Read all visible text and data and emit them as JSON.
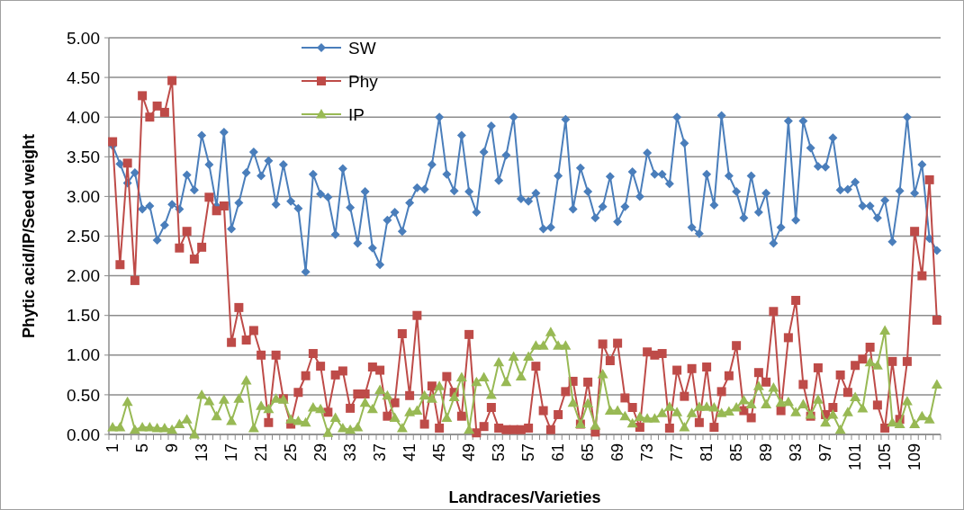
{
  "chart_data": {
    "type": "line",
    "xlabel": "Landraces/Varieties",
    "ylabel": "Phytic acid/IP/Seed weight",
    "categories": [
      "1",
      null,
      null,
      null,
      "5",
      null,
      null,
      null,
      "9",
      null,
      null,
      null,
      "13",
      null,
      null,
      null,
      "17",
      null,
      null,
      null,
      "21",
      null,
      null,
      null,
      "25",
      null,
      null,
      null,
      "29",
      null,
      null,
      null,
      "33",
      null,
      null,
      null,
      "37",
      null,
      null,
      null,
      "41",
      null,
      null,
      null,
      "45",
      null,
      null,
      null,
      "49",
      null,
      null,
      null,
      "53",
      null,
      null,
      null,
      "57",
      null,
      null,
      null,
      "61",
      null,
      null,
      null,
      "65",
      null,
      null,
      null,
      "69",
      null,
      null,
      null,
      "73",
      null,
      null,
      null,
      "77",
      null,
      null,
      null,
      "81",
      null,
      null,
      null,
      "85",
      null,
      null,
      null,
      "89",
      null,
      null,
      null,
      "93",
      null,
      null,
      null,
      "97",
      null,
      null,
      null,
      "101",
      null,
      null,
      null,
      "105",
      null,
      null,
      null,
      "109",
      null,
      null,
      null
    ],
    "series": [
      {
        "name": "SW",
        "color": "#4a7ebb",
        "marker": "diamond",
        "values": [
          3.64,
          3.41,
          3.17,
          3.3,
          2.84,
          2.88,
          2.45,
          2.64,
          2.9,
          2.84,
          3.27,
          3.08,
          3.77,
          3.4,
          2.88,
          3.81,
          2.59,
          2.92,
          3.3,
          3.56,
          3.26,
          3.45,
          2.9,
          3.4,
          2.94,
          2.85,
          2.05,
          3.28,
          3.03,
          2.99,
          2.52,
          3.35,
          2.86,
          2.41,
          3.06,
          2.35,
          2.14,
          2.7,
          2.8,
          2.56,
          2.92,
          3.11,
          3.09,
          3.4,
          4.0,
          3.28,
          3.07,
          3.77,
          3.06,
          2.8,
          3.56,
          3.89,
          3.2,
          3.52,
          4.0,
          2.97,
          2.94,
          3.04,
          2.59,
          2.61,
          3.26,
          3.97,
          2.84,
          3.36,
          3.06,
          2.73,
          2.87,
          3.25,
          2.68,
          2.87,
          3.31,
          3.0,
          3.55,
          3.28,
          3.28,
          3.16,
          4.0,
          3.67,
          2.61,
          2.53,
          3.28,
          2.89,
          4.02,
          3.26,
          3.06,
          2.73,
          3.26,
          2.8,
          3.04,
          2.41,
          2.61,
          3.95,
          2.7,
          3.95,
          3.61,
          3.38,
          3.37,
          3.74,
          3.08,
          3.09,
          3.18,
          2.88,
          2.88,
          2.73,
          2.95,
          2.43,
          3.07,
          4.0,
          3.04,
          3.4,
          2.47,
          2.32
        ]
      },
      {
        "name": "Phy",
        "color": "#be4b48",
        "marker": "square",
        "values": [
          3.69,
          2.14,
          3.42,
          1.94,
          4.27,
          4.0,
          4.14,
          4.06,
          4.46,
          2.35,
          2.56,
          2.21,
          2.36,
          2.99,
          2.82,
          2.88,
          1.16,
          1.6,
          1.19,
          1.31,
          1.0,
          0.15,
          1.0,
          0.45,
          0.13,
          0.53,
          0.74,
          1.02,
          0.86,
          0.28,
          0.75,
          0.8,
          0.33,
          0.51,
          0.51,
          0.85,
          0.81,
          0.23,
          0.4,
          1.27,
          0.49,
          1.5,
          0.13,
          0.61,
          0.08,
          0.73,
          0.53,
          0.23,
          1.26,
          0.02,
          0.1,
          0.34,
          0.08,
          0.06,
          0.06,
          0.06,
          0.08,
          0.86,
          0.3,
          0.06,
          0.25,
          0.54,
          0.67,
          0.13,
          0.66,
          0.03,
          1.14,
          0.93,
          1.15,
          0.46,
          0.34,
          0.09,
          1.04,
          1.0,
          1.02,
          0.08,
          0.81,
          0.48,
          0.83,
          0.15,
          0.85,
          0.09,
          0.54,
          0.74,
          1.12,
          0.3,
          0.21,
          0.78,
          0.66,
          1.55,
          0.3,
          1.22,
          1.69,
          0.63,
          0.23,
          0.84,
          0.25,
          0.34,
          0.75,
          0.53,
          0.87,
          0.95,
          1.1,
          0.37,
          0.08,
          0.92,
          0.19,
          0.92,
          2.56,
          2.0,
          3.21,
          1.44
        ]
      },
      {
        "name": "IP",
        "color": "#98b954",
        "marker": "triangle",
        "values": [
          0.09,
          0.09,
          0.41,
          0.06,
          0.09,
          0.09,
          0.08,
          0.08,
          0.06,
          0.13,
          0.19,
          0.0,
          0.5,
          0.42,
          0.23,
          0.44,
          0.17,
          0.45,
          0.68,
          0.08,
          0.36,
          0.32,
          0.45,
          0.44,
          0.19,
          0.17,
          0.15,
          0.34,
          0.32,
          0.02,
          0.21,
          0.08,
          0.06,
          0.09,
          0.4,
          0.32,
          0.56,
          0.49,
          0.21,
          0.08,
          0.28,
          0.3,
          0.49,
          0.45,
          0.61,
          0.21,
          0.47,
          0.72,
          0.06,
          0.66,
          0.72,
          0.5,
          0.91,
          0.66,
          0.98,
          0.73,
          0.98,
          1.12,
          1.12,
          1.29,
          1.12,
          1.12,
          0.4,
          0.13,
          0.39,
          0.11,
          0.76,
          0.3,
          0.3,
          0.23,
          0.14,
          0.22,
          0.2,
          0.2,
          0.27,
          0.35,
          0.28,
          0.09,
          0.27,
          0.35,
          0.35,
          0.34,
          0.27,
          0.29,
          0.34,
          0.43,
          0.38,
          0.61,
          0.38,
          0.59,
          0.4,
          0.41,
          0.28,
          0.38,
          0.25,
          0.44,
          0.15,
          0.25,
          0.06,
          0.28,
          0.47,
          0.33,
          0.91,
          0.87,
          1.31,
          0.15,
          0.13,
          0.42,
          0.13,
          0.23,
          0.19,
          0.63
        ]
      }
    ],
    "ylim": [
      0,
      5
    ],
    "yticks": [
      {
        "value": 0,
        "label": "0.00"
      },
      {
        "value": 0.5,
        "label": "0.50"
      },
      {
        "value": 1,
        "label": "1.00"
      },
      {
        "value": 1.5,
        "label": "1.50"
      },
      {
        "value": 2,
        "label": "2.00"
      },
      {
        "value": 2.5,
        "label": "2.50"
      },
      {
        "value": 3,
        "label": "3.00"
      },
      {
        "value": 3.5,
        "label": "3.50"
      },
      {
        "value": 4,
        "label": "4.00"
      },
      {
        "value": 4.5,
        "label": "4.50"
      },
      {
        "value": 5,
        "label": "5.00"
      }
    ],
    "grid": "y",
    "legend": "top",
    "line_style": "solid"
  }
}
